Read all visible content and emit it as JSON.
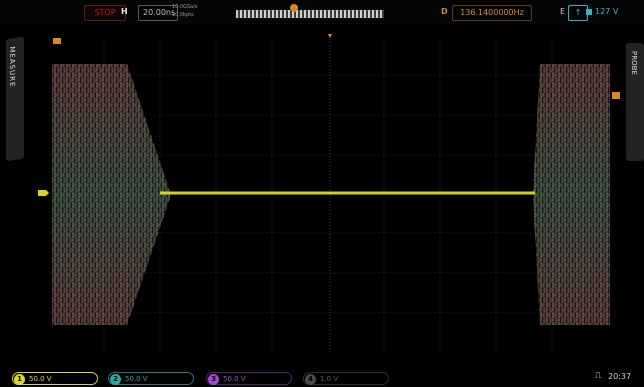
{
  "top_bar": {
    "run_state": "STOP",
    "horizontal_label": "H",
    "timebase": "20.00ns",
    "sample_rate": "10.0GSa/s",
    "memory_depth": "10.0kpts",
    "delay_label": "D",
    "frequency": "136.1400000Hz",
    "trigger_source": "E",
    "trigger_slope": "↑",
    "trigger_level": "127 V"
  },
  "side_tabs": {
    "left": "MEASURE",
    "right": "PROBE"
  },
  "markers": {
    "trigger_position": "T",
    "channel1": "1",
    "trigger_level": "T"
  },
  "channels": [
    {
      "number": "1",
      "scale": "50.0 V"
    },
    {
      "number": "2",
      "scale": "50.0 V"
    },
    {
      "number": "3",
      "scale": "50.0 V"
    },
    {
      "number": "4",
      "scale": "1.0 V"
    }
  ],
  "status": {
    "usb_icon": "usb-icon",
    "time": "20:37"
  },
  "colors": {
    "ch1": "#dcd51e",
    "ch2": "#2aa9a5",
    "ch3": "#a44ad0",
    "ch4": "#4a4a4a",
    "trigger": "#d98a27",
    "run_stop": "#c01818"
  }
}
